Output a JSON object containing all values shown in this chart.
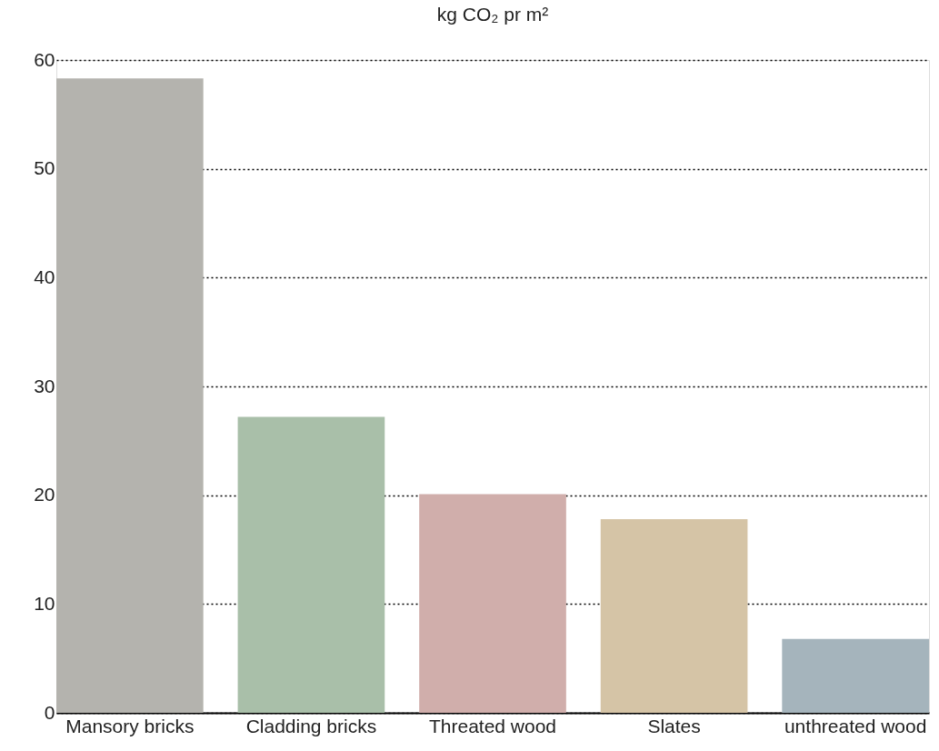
{
  "chart_data": {
    "type": "bar",
    "title": "kg CO₂ pr m²",
    "categories": [
      "Mansory bricks",
      "Cladding bricks",
      "Threated wood",
      "Slates",
      "unthreated wood"
    ],
    "values": [
      58.3,
      27.2,
      20.1,
      17.8,
      6.8
    ],
    "colors": [
      "#b4b3ae",
      "#a9bfa9",
      "#d0aeab",
      "#d5c4a6",
      "#a5b4bc"
    ],
    "ylim": [
      0,
      60
    ],
    "yticks": [
      0,
      10,
      20,
      30,
      40,
      50,
      60
    ],
    "grid": "y",
    "legend": false
  }
}
